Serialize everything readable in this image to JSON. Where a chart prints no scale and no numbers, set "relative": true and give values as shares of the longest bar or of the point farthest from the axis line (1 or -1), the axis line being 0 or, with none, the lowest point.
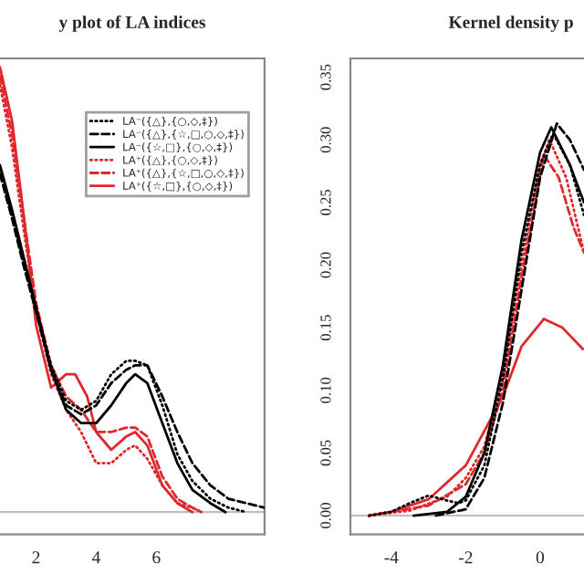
{
  "chart_data": [
    {
      "type": "line",
      "title": "y plot of LA indices",
      "relative": true,
      "xlim": [
        0.8,
        9.6
      ],
      "xticks": [
        2,
        4,
        6
      ],
      "legend": "top right",
      "grid": false,
      "ref_lines": [
        {
          "axis": "y",
          "value": 0,
          "color": "#bebebe"
        }
      ],
      "series": [
        {
          "name": "LA⁻({△},{○,◇,‡})",
          "color": "#000000",
          "line_style": "dotted",
          "x": [
            0.8,
            1.2,
            1.6,
            2.0,
            2.5,
            3.0,
            3.5,
            4.0,
            4.5,
            5.0,
            5.3,
            5.7,
            6.2,
            6.7,
            7.2,
            7.8,
            8.4,
            9.0
          ],
          "values": [
            0.77,
            0.67,
            0.56,
            0.46,
            0.33,
            0.25,
            0.23,
            0.25,
            0.31,
            0.34,
            0.34,
            0.33,
            0.24,
            0.13,
            0.07,
            0.03,
            0.01,
            0
          ]
        },
        {
          "name": "LA⁻({△},{☆,□,○,◇,‡})",
          "color": "#000000",
          "line_style": "dashed",
          "x": [
            0.8,
            1.2,
            1.6,
            2.0,
            2.5,
            3.0,
            3.5,
            4.0,
            4.5,
            5.0,
            5.3,
            5.7,
            6.2,
            6.7,
            7.2,
            7.8,
            8.4,
            9.0,
            9.6
          ],
          "values": [
            0.76,
            0.66,
            0.55,
            0.45,
            0.32,
            0.24,
            0.22,
            0.24,
            0.29,
            0.32,
            0.33,
            0.33,
            0.26,
            0.18,
            0.11,
            0.06,
            0.03,
            0.02,
            0.01
          ]
        },
        {
          "name": "LA⁻({☆,□},{○,◇,‡})",
          "color": "#000000",
          "line_style": "solid",
          "x": [
            0.8,
            1.2,
            1.6,
            2.0,
            2.5,
            3.0,
            3.5,
            4.0,
            4.5,
            5.0,
            5.3,
            5.7,
            6.2,
            6.7,
            7.2,
            7.8,
            8.3
          ],
          "values": [
            0.78,
            0.68,
            0.57,
            0.46,
            0.32,
            0.23,
            0.2,
            0.2,
            0.24,
            0.29,
            0.31,
            0.29,
            0.2,
            0.11,
            0.05,
            0.02,
            0
          ]
        },
        {
          "name": "LA⁺({△},{○,◇,‡})",
          "color": "#e0282c",
          "line_style": "dotted",
          "x": [
            0.8,
            1.2,
            1.6,
            2.0,
            2.5,
            3.0,
            3.5,
            4.0,
            4.5,
            5.0,
            5.3,
            5.7,
            6.2,
            6.7,
            7.2,
            7.5
          ],
          "values": [
            0.96,
            0.82,
            0.63,
            0.45,
            0.31,
            0.23,
            0.18,
            0.11,
            0.11,
            0.14,
            0.15,
            0.12,
            0.06,
            0.02,
            0.01,
            0
          ]
        },
        {
          "name": "LA⁺({△},{☆,□,○,◇,‡})",
          "color": "#e0282c",
          "line_style": "dashed",
          "x": [
            0.8,
            1.2,
            1.6,
            2.0,
            2.5,
            3.0,
            3.5,
            4.0,
            4.5,
            5.0,
            5.3,
            5.7,
            6.2,
            6.7,
            7.2,
            7.5
          ],
          "values": [
            0.98,
            0.85,
            0.66,
            0.47,
            0.33,
            0.26,
            0.23,
            0.18,
            0.18,
            0.19,
            0.19,
            0.17,
            0.08,
            0.03,
            0.01,
            0
          ]
        },
        {
          "name": "LA⁺({☆,□},{○,◇,‡})",
          "color": "#e0282c",
          "line_style": "solid",
          "x": [
            0.8,
            1.2,
            1.6,
            2.0,
            2.5,
            3.0,
            3.3,
            3.7,
            4.0,
            4.5,
            5.0,
            5.3,
            5.7,
            6.2,
            6.7,
            7.2
          ],
          "values": [
            1,
            0.88,
            0.66,
            0.42,
            0.28,
            0.31,
            0.31,
            0.26,
            0.18,
            0.14,
            0.17,
            0.18,
            0.15,
            0.06,
            0.02,
            0
          ]
        }
      ]
    },
    {
      "type": "line",
      "title": "Kernel density p",
      "xlim": [
        -5.1,
        1.18
      ],
      "ylim": [
        -0.015,
        0.365
      ],
      "xticks": [
        -4,
        -2,
        0
      ],
      "yticks": [
        {
          "value": 0,
          "label": "0.00"
        },
        {
          "value": 0.05,
          "label": "0.05"
        },
        {
          "value": 0.1,
          "label": "0.10"
        },
        {
          "value": 0.15,
          "label": "0.15"
        },
        {
          "value": 0.2,
          "label": "0.20"
        },
        {
          "value": 0.25,
          "label": "0.25"
        },
        {
          "value": 0.3,
          "label": "0.30"
        },
        {
          "value": 0.35,
          "label": "0.35"
        }
      ],
      "legend": false,
      "grid": false,
      "ref_lines": [
        {
          "axis": "y",
          "value": 0,
          "color": "#bebebe"
        }
      ],
      "series": [
        {
          "color": "#000000",
          "line_style": "dotted",
          "x": [
            -4.6,
            -4,
            -3.5,
            -3,
            -2.5,
            -2.2,
            -2,
            -1.5,
            -1,
            -0.5,
            0,
            0.35,
            0.8,
            1.18
          ],
          "values": [
            0,
            0.003,
            0.01,
            0.016,
            0.012,
            0.01,
            0.012,
            0.04,
            0.11,
            0.21,
            0.28,
            0.305,
            0.28,
            0.24
          ]
        },
        {
          "color": "#000000",
          "line_style": "dashed",
          "x": [
            -2.8,
            -2,
            -1.5,
            -1,
            -0.5,
            0,
            0.45,
            0.8,
            1.18
          ],
          "values": [
            0,
            0.005,
            0.03,
            0.09,
            0.18,
            0.27,
            0.313,
            0.3,
            0.276
          ]
        },
        {
          "color": "#000000",
          "line_style": "solid",
          "x": [
            -3.4,
            -2.5,
            -2,
            -1.5,
            -1,
            -0.5,
            0,
            0.3,
            0.8,
            1.18
          ],
          "values": [
            0,
            0.003,
            0.015,
            0.05,
            0.12,
            0.22,
            0.29,
            0.31,
            0.28,
            0.25
          ]
        },
        {
          "color": "#e0282c",
          "line_style": "dotted",
          "x": [
            -4.6,
            -3.5,
            -2.5,
            -2,
            -1.5,
            -1,
            -0.5,
            0,
            0.25,
            0.7,
            1.18
          ],
          "values": [
            0,
            0.004,
            0.015,
            0.03,
            0.055,
            0.11,
            0.2,
            0.28,
            0.3,
            0.27,
            0.21
          ]
        },
        {
          "color": "#e0282c",
          "line_style": "dashed",
          "x": [
            -4.6,
            -3,
            -2,
            -1.5,
            -1,
            -0.5,
            0.1,
            0.5,
            0.9,
            1.18
          ],
          "values": [
            0,
            0.008,
            0.025,
            0.05,
            0.1,
            0.19,
            0.288,
            0.27,
            0.23,
            0.21
          ]
        },
        {
          "color": "#e0282c",
          "line_style": "solid",
          "x": [
            -4.6,
            -4,
            -3,
            -2,
            -1,
            -0.5,
            0.1,
            0.6,
            1.15
          ],
          "values": [
            0,
            0.003,
            0.013,
            0.04,
            0.095,
            0.135,
            0.157,
            0.15,
            0.133
          ]
        }
      ]
    }
  ]
}
